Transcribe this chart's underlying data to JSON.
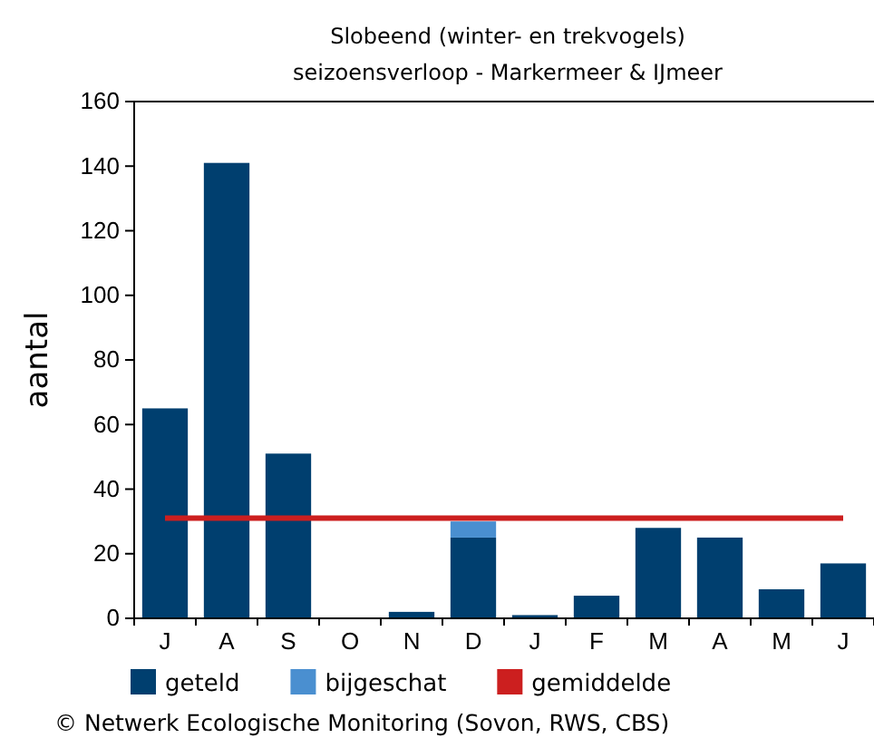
{
  "chart_data": {
    "type": "bar",
    "title": "Slobeend (winter- en trekvogels)",
    "subtitle": "seizoensverloop - Markermeer & IJmeer",
    "ylabel": "aantal",
    "categories": [
      "J",
      "A",
      "S",
      "O",
      "N",
      "D",
      "J",
      "F",
      "M",
      "A",
      "M",
      "J"
    ],
    "stacked": true,
    "series": [
      {
        "name": "geteld",
        "color": "#003f6f",
        "values": [
          65,
          141,
          51,
          0,
          2,
          25,
          1,
          7,
          28,
          25,
          9,
          17
        ]
      },
      {
        "name": "bijgeschat",
        "color": "#4a8fd0",
        "values": [
          0,
          0,
          0,
          0,
          0,
          5,
          0,
          0,
          0,
          0,
          0,
          0
        ]
      }
    ],
    "ref_lines": [
      {
        "axis": "y",
        "value": 31,
        "label": "gemiddelde",
        "color": "#cc1f1f"
      }
    ],
    "ylim": [
      0,
      160
    ],
    "yticks": [
      0,
      20,
      40,
      60,
      80,
      100,
      120,
      140,
      160
    ],
    "grid": false,
    "legend": "bottom",
    "annotations": [
      "© Netwerk Ecologische Monitoring (Sovon, RWS, CBS)"
    ]
  }
}
